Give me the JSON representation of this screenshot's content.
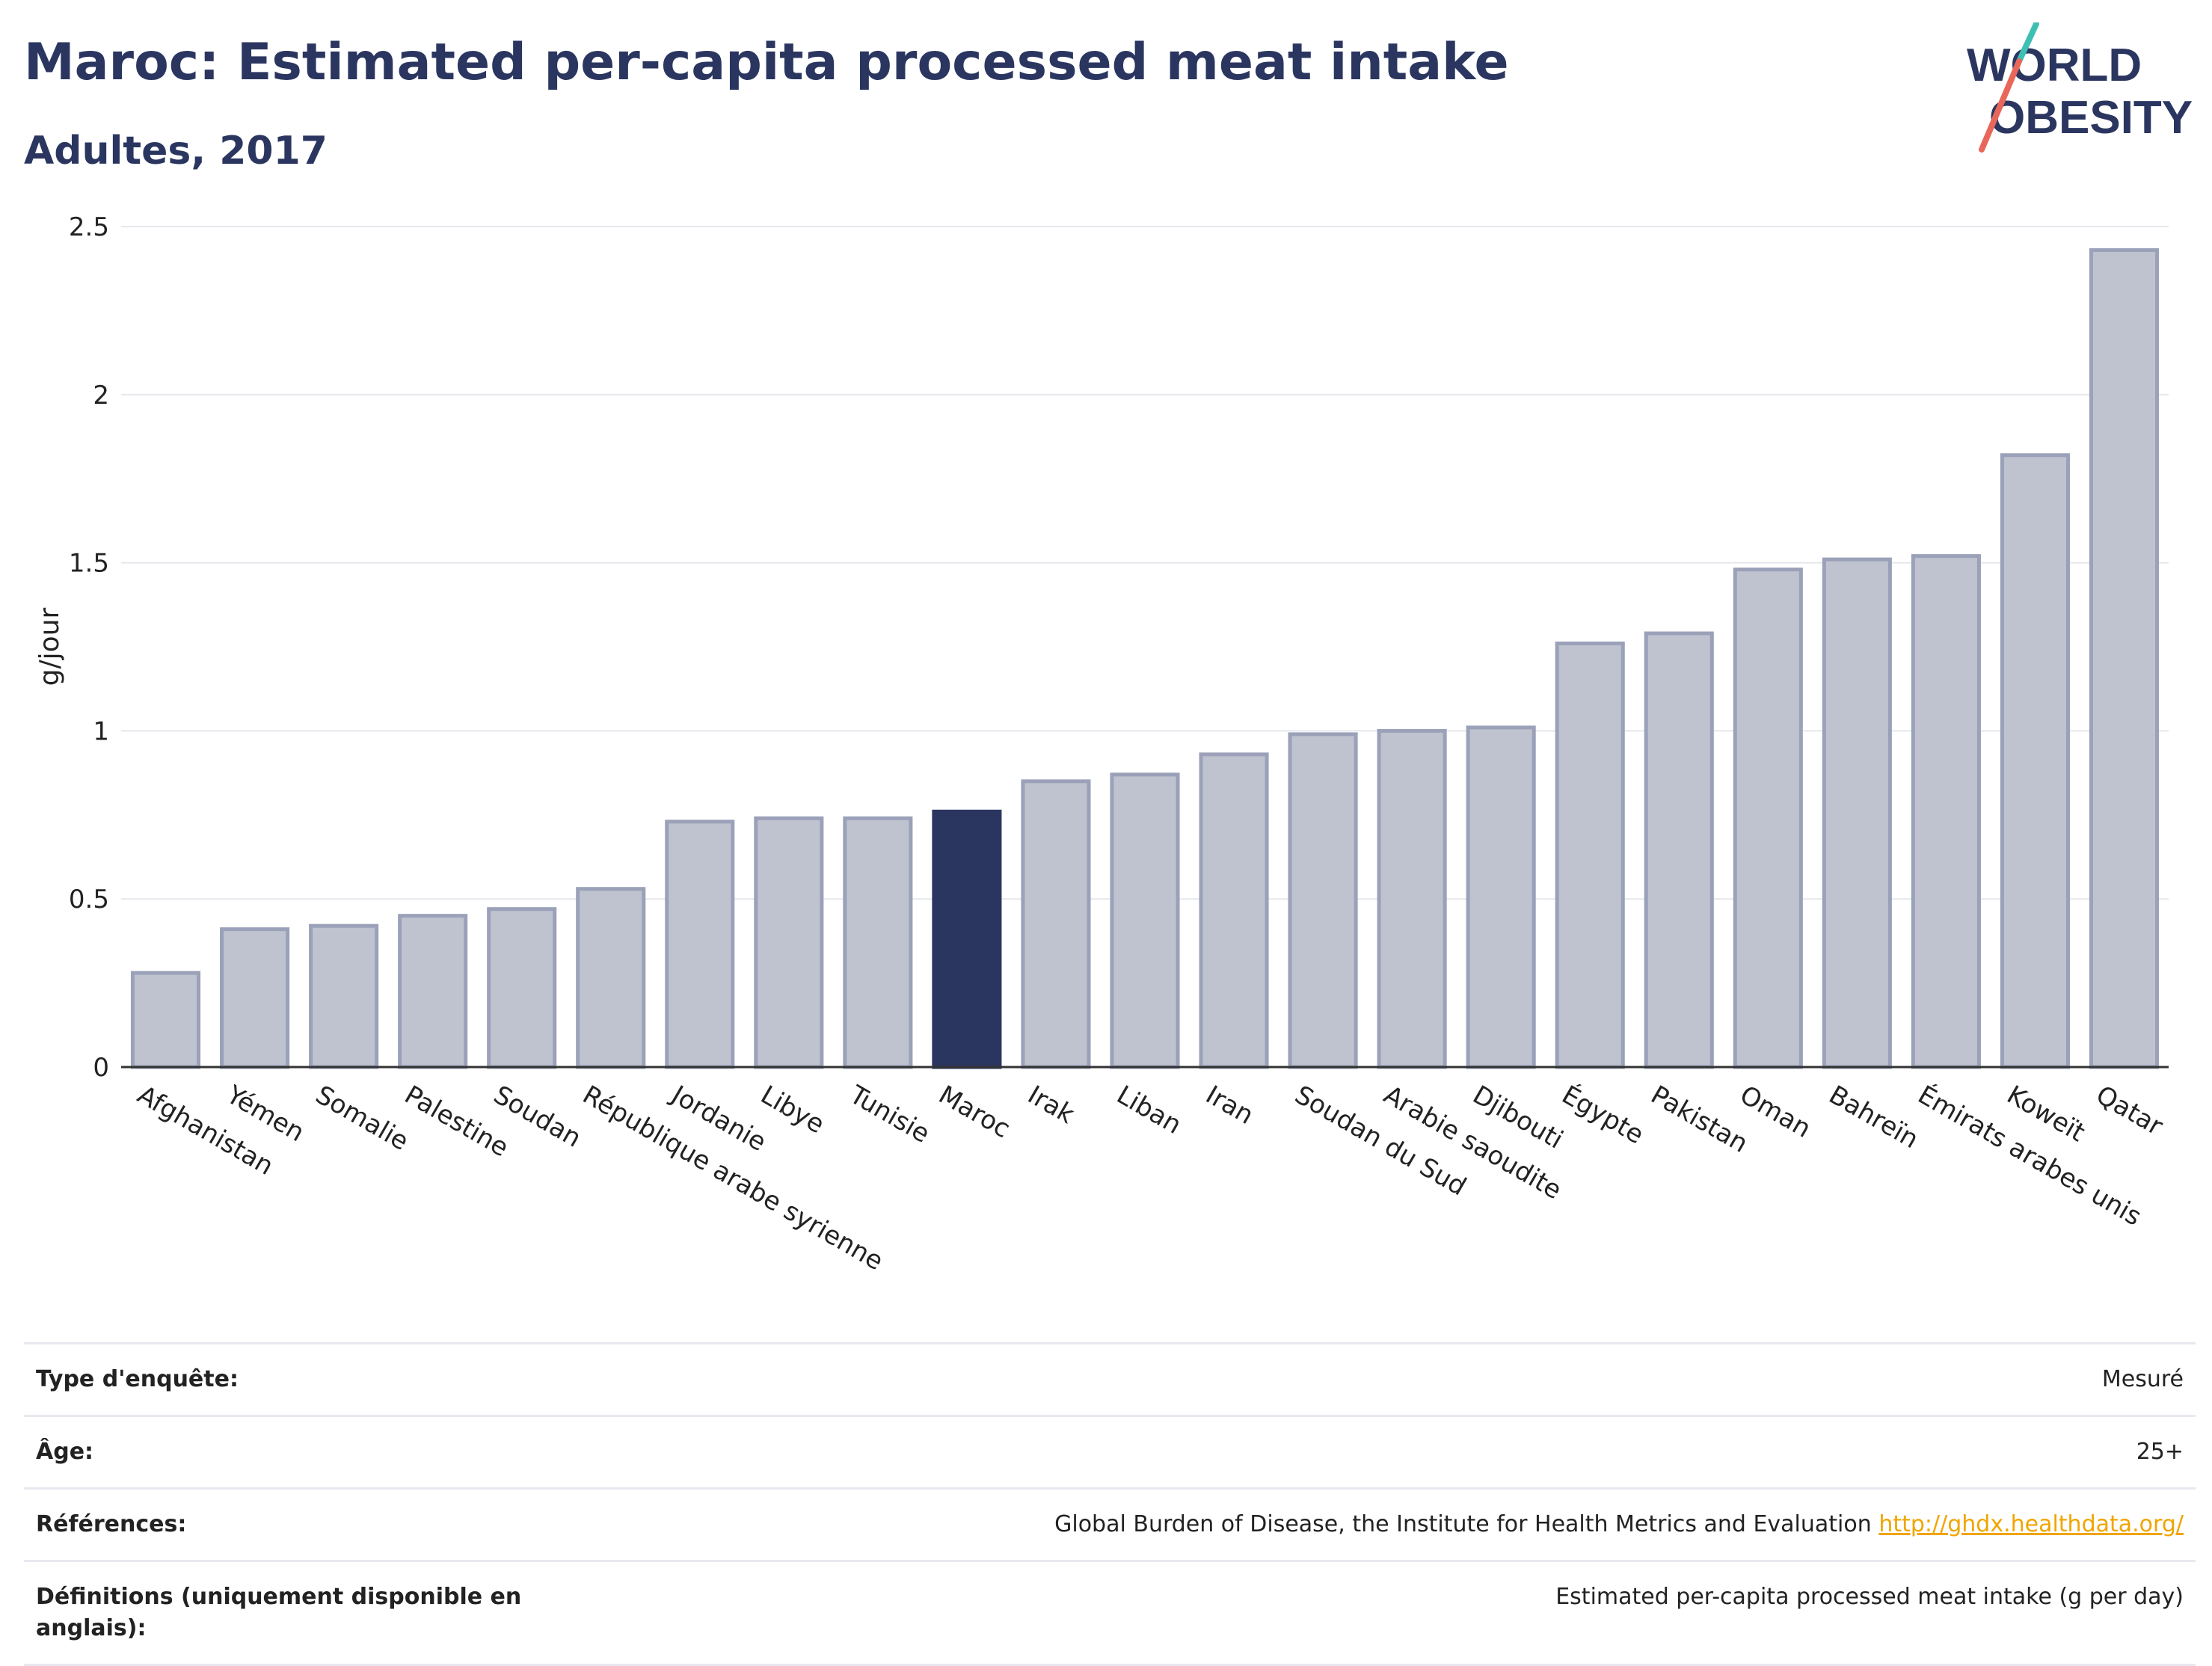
{
  "header": {
    "title": "Maroc: Estimated per-capita processed meat intake",
    "subtitle": "Adultes, 2017"
  },
  "logo": {
    "line1": "WORLD",
    "line2": "OBESITY"
  },
  "chart_data": {
    "type": "bar",
    "ylabel": "g/jour",
    "xlabel": "",
    "ylim": [
      0,
      2.5
    ],
    "yticks": [
      0,
      0.5,
      1,
      1.5,
      2,
      2.5
    ],
    "ytick_labels": [
      "0",
      "0.5",
      "1",
      "1.5",
      "2",
      "2.5"
    ],
    "grid": true,
    "highlight": "Maroc",
    "colors": {
      "bar": "#bfc3d0",
      "bar_border": "#9aa1b8",
      "highlight": "#2b3660"
    },
    "categories": [
      "Afghanistan",
      "Yémen",
      "Somalie",
      "Palestine",
      "Soudan",
      "République arabe syrienne",
      "Jordanie",
      "Libye",
      "Tunisie",
      "Maroc",
      "Irak",
      "Liban",
      "Iran",
      "Soudan du Sud",
      "Arabie saoudite",
      "Djibouti",
      "Égypte",
      "Pakistan",
      "Oman",
      "Bahreïn",
      "Émirats arabes unis",
      "Koweït",
      "Qatar"
    ],
    "values": [
      0.28,
      0.41,
      0.42,
      0.45,
      0.47,
      0.53,
      0.73,
      0.74,
      0.74,
      0.76,
      0.85,
      0.87,
      0.93,
      0.99,
      1.0,
      1.01,
      1.26,
      1.29,
      1.48,
      1.51,
      1.52,
      1.82,
      2.43
    ]
  },
  "info": [
    {
      "label": "Type d'enquête:",
      "value": "Mesuré",
      "link": ""
    },
    {
      "label": "Âge:",
      "value": "25+",
      "link": ""
    },
    {
      "label": "Références:",
      "value": "Global Burden of Disease, the Institute for Health Metrics and Evaluation",
      "link": "http://ghdx.healthdata.org/"
    },
    {
      "label": "Définitions (uniquement disponible en anglais):",
      "value": "Estimated per-capita processed meat intake (g per day)",
      "link": ""
    }
  ]
}
